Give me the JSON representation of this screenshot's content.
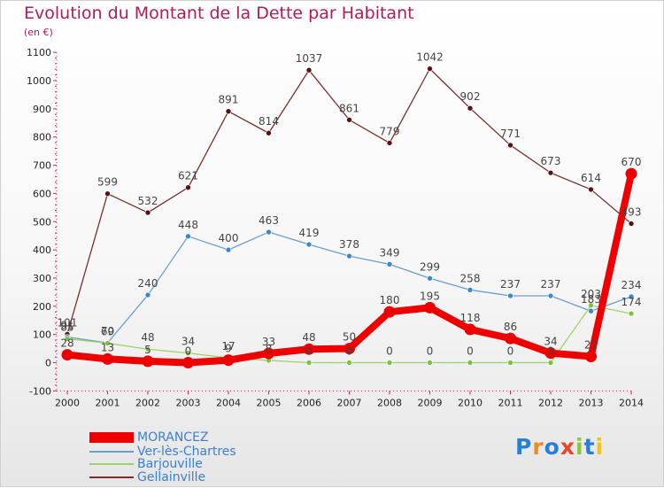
{
  "header": {
    "title": "Evolution du Montant de la Dette par Habitant",
    "subtitle": "(en €)"
  },
  "logo": {
    "text": "Proxiti",
    "colors": [
      "#2a7ed8",
      "#f08a1a",
      "#2a7ed8",
      "#e8452a",
      "#8cc63f",
      "#2a7ed8",
      "#f0c419"
    ]
  },
  "chart_data": {
    "type": "line",
    "title": "Evolution du Montant de la Dette par Habitant",
    "subtitle": "(en €)",
    "xlabel": "",
    "ylabel": "",
    "x": [
      "2000",
      "2001",
      "2002",
      "2003",
      "2004",
      "2005",
      "2006",
      "2007",
      "2008",
      "2009",
      "2010",
      "2011",
      "2012",
      "2013",
      "2014"
    ],
    "yticks": [
      "-100",
      "0",
      "100",
      "200",
      "300",
      "400",
      "500",
      "600",
      "700",
      "800",
      "900",
      "1000",
      "1100"
    ],
    "ylim": [
      -100,
      1100
    ],
    "grid": false,
    "legend_position": "bottom-left",
    "series": [
      {
        "name": "MORANCEZ",
        "color": "#ee0000",
        "marker_color": "#ee0000",
        "values": [
          28,
          13,
          5,
          0,
          9,
          33,
          48,
          50,
          180,
          195,
          118,
          86,
          34,
          22,
          670
        ],
        "labels": [
          "28",
          "13",
          "5",
          "0",
          "9",
          "33",
          "48",
          "50",
          "180",
          "195",
          "118",
          "86",
          "34",
          "22",
          "670"
        ]
      },
      {
        "name": "Ver-lès-Chartres",
        "color": "#6a9ed0",
        "marker_color": "#3a87d0",
        "values": [
          91,
          70,
          240,
          448,
          400,
          463,
          419,
          378,
          349,
          299,
          258,
          237,
          237,
          183,
          234
        ],
        "labels": [
          "91",
          "70",
          "240",
          "448",
          "400",
          "463",
          "419",
          "378",
          "349",
          "299",
          "258",
          "237",
          "237",
          "183",
          "234"
        ]
      },
      {
        "name": "Barjouville",
        "color": "#9cd46a",
        "marker_color": "#7cc23a",
        "values": [
          85,
          69,
          48,
          34,
          17,
          8,
          0,
          0,
          0,
          0,
          0,
          0,
          0,
          203,
          174
        ],
        "labels": [
          "85",
          "69",
          "48",
          "34",
          "17",
          "8",
          "0",
          "0",
          "0",
          "0",
          "0",
          "0",
          "0",
          "203",
          "174"
        ]
      },
      {
        "name": "Gellainville",
        "color": "#7a2e2e",
        "marker_color": "#5a1010",
        "values": [
          101,
          599,
          532,
          621,
          891,
          814,
          1037,
          861,
          779,
          1042,
          902,
          771,
          673,
          614,
          493
        ],
        "labels": [
          "101",
          "599",
          "532",
          "621",
          "891",
          "814",
          "1037",
          "861",
          "779",
          "1042",
          "902",
          "771",
          "673",
          "614",
          "493"
        ]
      }
    ]
  }
}
